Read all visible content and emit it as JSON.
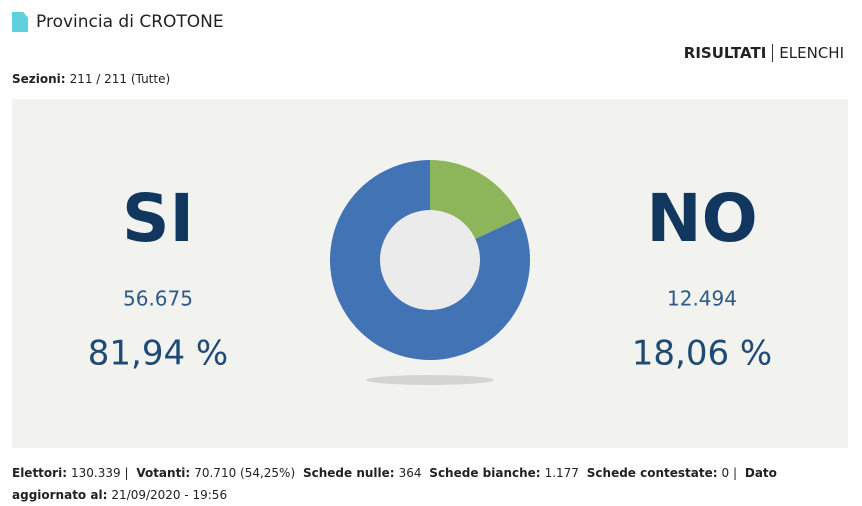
{
  "header": {
    "title": "Provincia di CROTONE",
    "tabs": [
      "RISULTATI",
      "ELENCHI"
    ],
    "sections_label": "Sezioni:",
    "sections_value": "211 / 211 (Tutte)"
  },
  "chart_data": {
    "type": "pie",
    "categories": [
      "SI",
      "NO"
    ],
    "values": [
      56675,
      12494
    ],
    "value_labels": [
      "56.675",
      "12.494"
    ],
    "share_labels": [
      "81,94 %",
      "18,06 %"
    ],
    "colors": [
      "#4273b5",
      "#8db55a"
    ]
  },
  "footer": [
    {
      "label": "Elettori:",
      "value": "130.339 |"
    },
    {
      "label": "Votanti:",
      "value": "70.710 (54,25%)"
    },
    {
      "label": "Schede nulle:",
      "value": "364"
    },
    {
      "label": "Schede bianche:",
      "value": "1.177"
    },
    {
      "label": "Schede contestate:",
      "value": "0 |"
    },
    {
      "label": "Dato aggiornato al:",
      "value": "21/09/2020 - 19:56"
    }
  ]
}
